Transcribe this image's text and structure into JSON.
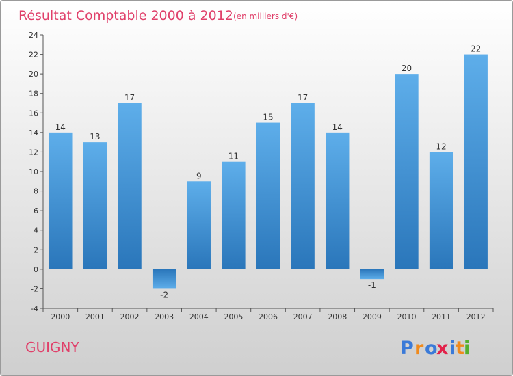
{
  "chart_data": {
    "type": "bar",
    "title": "Résultat Comptable 2000 à 2012",
    "subtitle": "(en milliers d'€)",
    "categories": [
      "2000",
      "2001",
      "2002",
      "2003",
      "2004",
      "2005",
      "2006",
      "2007",
      "2008",
      "2009",
      "2010",
      "2011",
      "2012"
    ],
    "values": [
      14,
      13,
      17,
      -2,
      9,
      11,
      15,
      17,
      14,
      -1,
      20,
      12,
      22
    ],
    "ylim": [
      -4,
      24
    ],
    "yticks": [
      -4,
      -2,
      0,
      2,
      4,
      6,
      8,
      10,
      12,
      14,
      16,
      18,
      20,
      22,
      24
    ],
    "xlabel": "",
    "ylabel": "",
    "grid": false
  },
  "footer": {
    "town": "GUIGNY",
    "brand": [
      "P",
      "r",
      "o",
      "x",
      "i",
      "t",
      "i"
    ]
  },
  "colors": {
    "title": "#e0406a",
    "bar_light": "#5aaae8",
    "bar_dark": "#2a78bc",
    "brand": [
      "#3a7ad8",
      "#f08a1c",
      "#3a7ad8",
      "#e2224a",
      "#3a7ad8",
      "#f08a1c",
      "#55b030"
    ]
  }
}
